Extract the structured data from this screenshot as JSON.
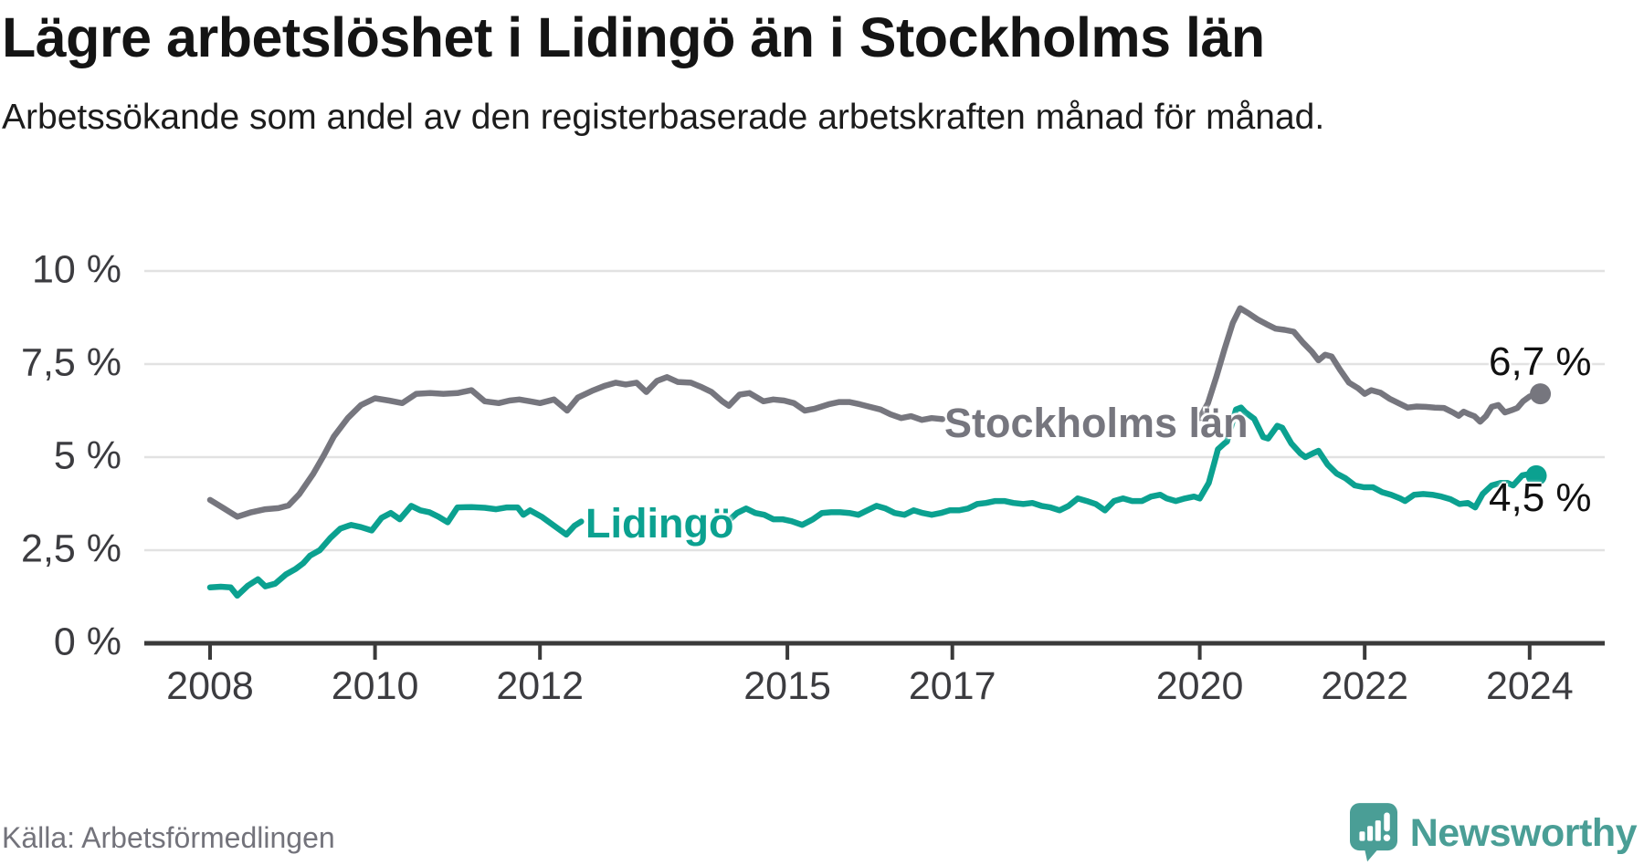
{
  "header": {
    "title": "Lägre arbetslöshet i Lidingö än i Stockholms län",
    "subtitle": "Arbetssökande som andel av den registerbaserade arbetskraften månad för månad."
  },
  "footer": {
    "source": "Källa: Arbetsförmedlingen",
    "brand": "Newsworthy"
  },
  "chart_data": {
    "type": "line",
    "title": "Lägre arbetslöshet i Lidingö än i Stockholms län",
    "subtitle": "Arbetssökande som andel av den registerbaserade arbetskraften månad för månad.",
    "xlabel": "",
    "ylabel": "",
    "grid": true,
    "legend": "inline-labels",
    "x_axis": {
      "ticks": [
        2008,
        2010,
        2012,
        2015,
        2017,
        2020,
        2022,
        2024
      ],
      "range": [
        2008,
        2024.3
      ],
      "unit": "year"
    },
    "y_axis": {
      "range": [
        0,
        10
      ],
      "unit": "%",
      "ticks": [
        {
          "value": 0,
          "label": "0 %"
        },
        {
          "value": 2.5,
          "label": "2,5 %"
        },
        {
          "value": 5,
          "label": "5 %"
        },
        {
          "value": 7.5,
          "label": "7,5 %"
        },
        {
          "value": 10,
          "label": "10 %"
        }
      ]
    },
    "series": [
      {
        "name": "Stockholms län",
        "color": "#76767e",
        "end_label": "6,7 %",
        "end_value": 6.7,
        "label_gap": [
          2016.9,
          2019.96
        ],
        "points": [
          [
            2008.0,
            3.85
          ],
          [
            2008.17,
            3.62
          ],
          [
            2008.33,
            3.4
          ],
          [
            2008.5,
            3.52
          ],
          [
            2008.67,
            3.6
          ],
          [
            2008.83,
            3.63
          ],
          [
            2008.95,
            3.7
          ],
          [
            2009.08,
            4.0
          ],
          [
            2009.25,
            4.55
          ],
          [
            2009.38,
            5.05
          ],
          [
            2009.5,
            5.55
          ],
          [
            2009.67,
            6.05
          ],
          [
            2009.83,
            6.4
          ],
          [
            2010.0,
            6.58
          ],
          [
            2010.17,
            6.52
          ],
          [
            2010.33,
            6.45
          ],
          [
            2010.5,
            6.7
          ],
          [
            2010.67,
            6.72
          ],
          [
            2010.83,
            6.7
          ],
          [
            2011.0,
            6.72
          ],
          [
            2011.17,
            6.8
          ],
          [
            2011.33,
            6.5
          ],
          [
            2011.5,
            6.45
          ],
          [
            2011.63,
            6.52
          ],
          [
            2011.75,
            6.55
          ],
          [
            2011.88,
            6.5
          ],
          [
            2012.0,
            6.45
          ],
          [
            2012.17,
            6.55
          ],
          [
            2012.33,
            6.25
          ],
          [
            2012.46,
            6.6
          ],
          [
            2012.63,
            6.78
          ],
          [
            2012.79,
            6.92
          ],
          [
            2012.92,
            7.0
          ],
          [
            2013.04,
            6.95
          ],
          [
            2013.17,
            7.0
          ],
          [
            2013.29,
            6.75
          ],
          [
            2013.42,
            7.05
          ],
          [
            2013.54,
            7.15
          ],
          [
            2013.67,
            7.02
          ],
          [
            2013.83,
            7.0
          ],
          [
            2013.96,
            6.88
          ],
          [
            2014.08,
            6.75
          ],
          [
            2014.21,
            6.5
          ],
          [
            2014.29,
            6.38
          ],
          [
            2014.42,
            6.68
          ],
          [
            2014.54,
            6.72
          ],
          [
            2014.71,
            6.5
          ],
          [
            2014.83,
            6.55
          ],
          [
            2014.96,
            6.52
          ],
          [
            2015.08,
            6.45
          ],
          [
            2015.21,
            6.25
          ],
          [
            2015.33,
            6.3
          ],
          [
            2015.5,
            6.42
          ],
          [
            2015.63,
            6.48
          ],
          [
            2015.75,
            6.48
          ],
          [
            2015.88,
            6.42
          ],
          [
            2016.0,
            6.35
          ],
          [
            2016.13,
            6.28
          ],
          [
            2016.25,
            6.15
          ],
          [
            2016.38,
            6.05
          ],
          [
            2016.5,
            6.1
          ],
          [
            2016.63,
            6.0
          ],
          [
            2016.75,
            6.05
          ],
          [
            2016.88,
            6.02
          ],
          [
            2017.0,
            6.0
          ],
          [
            2017.25,
            6.02
          ],
          [
            2017.5,
            5.95
          ],
          [
            2017.75,
            5.98
          ],
          [
            2018.0,
            5.95
          ],
          [
            2018.25,
            5.9
          ],
          [
            2018.5,
            5.93
          ],
          [
            2018.75,
            5.9
          ],
          [
            2019.0,
            5.88
          ],
          [
            2019.25,
            5.85
          ],
          [
            2019.5,
            5.88
          ],
          [
            2019.75,
            5.9
          ],
          [
            2020.0,
            6.05
          ],
          [
            2020.1,
            6.45
          ],
          [
            2020.2,
            7.15
          ],
          [
            2020.3,
            7.9
          ],
          [
            2020.4,
            8.6
          ],
          [
            2020.49,
            9.0
          ],
          [
            2020.6,
            8.85
          ],
          [
            2020.7,
            8.7
          ],
          [
            2020.81,
            8.57
          ],
          [
            2020.92,
            8.45
          ],
          [
            2021.03,
            8.42
          ],
          [
            2021.14,
            8.37
          ],
          [
            2021.25,
            8.08
          ],
          [
            2021.36,
            7.83
          ],
          [
            2021.44,
            7.6
          ],
          [
            2021.52,
            7.75
          ],
          [
            2021.6,
            7.7
          ],
          [
            2021.7,
            7.35
          ],
          [
            2021.81,
            7.0
          ],
          [
            2021.92,
            6.85
          ],
          [
            2022.0,
            6.7
          ],
          [
            2022.08,
            6.8
          ],
          [
            2022.19,
            6.73
          ],
          [
            2022.3,
            6.57
          ],
          [
            2022.41,
            6.45
          ],
          [
            2022.52,
            6.33
          ],
          [
            2022.63,
            6.36
          ],
          [
            2022.74,
            6.35
          ],
          [
            2022.85,
            6.33
          ],
          [
            2022.96,
            6.32
          ],
          [
            2023.07,
            6.2
          ],
          [
            2023.14,
            6.11
          ],
          [
            2023.2,
            6.22
          ],
          [
            2023.26,
            6.16
          ],
          [
            2023.33,
            6.1
          ],
          [
            2023.4,
            5.95
          ],
          [
            2023.47,
            6.1
          ],
          [
            2023.54,
            6.35
          ],
          [
            2023.62,
            6.4
          ],
          [
            2023.7,
            6.2
          ],
          [
            2023.78,
            6.26
          ],
          [
            2023.85,
            6.32
          ],
          [
            2023.92,
            6.5
          ],
          [
            2024.0,
            6.63
          ],
          [
            2024.08,
            6.68
          ],
          [
            2024.13,
            6.7
          ]
        ]
      },
      {
        "name": "Lidingö",
        "color": "#0ba190",
        "end_label": "4,5 %",
        "end_value": 4.5,
        "label_gap": [
          2012.55,
          2014.25
        ],
        "points": [
          [
            2008.0,
            1.5
          ],
          [
            2008.13,
            1.52
          ],
          [
            2008.25,
            1.5
          ],
          [
            2008.33,
            1.28
          ],
          [
            2008.46,
            1.55
          ],
          [
            2008.58,
            1.72
          ],
          [
            2008.67,
            1.53
          ],
          [
            2008.79,
            1.6
          ],
          [
            2008.92,
            1.85
          ],
          [
            2009.04,
            2.0
          ],
          [
            2009.13,
            2.15
          ],
          [
            2009.21,
            2.35
          ],
          [
            2009.33,
            2.5
          ],
          [
            2009.46,
            2.83
          ],
          [
            2009.58,
            3.08
          ],
          [
            2009.71,
            3.18
          ],
          [
            2009.83,
            3.12
          ],
          [
            2009.96,
            3.03
          ],
          [
            2010.08,
            3.37
          ],
          [
            2010.19,
            3.5
          ],
          [
            2010.3,
            3.33
          ],
          [
            2010.44,
            3.69
          ],
          [
            2010.55,
            3.57
          ],
          [
            2010.66,
            3.52
          ],
          [
            2010.77,
            3.4
          ],
          [
            2010.88,
            3.25
          ],
          [
            2011.0,
            3.65
          ],
          [
            2011.17,
            3.66
          ],
          [
            2011.33,
            3.64
          ],
          [
            2011.47,
            3.6
          ],
          [
            2011.6,
            3.65
          ],
          [
            2011.73,
            3.65
          ],
          [
            2011.8,
            3.45
          ],
          [
            2011.88,
            3.57
          ],
          [
            2012.02,
            3.4
          ],
          [
            2012.17,
            3.16
          ],
          [
            2012.32,
            2.92
          ],
          [
            2012.42,
            3.16
          ],
          [
            2012.5,
            3.27
          ],
          [
            2012.7,
            3.4
          ],
          [
            2012.9,
            3.5
          ],
          [
            2013.1,
            3.55
          ],
          [
            2013.3,
            3.6
          ],
          [
            2013.5,
            3.55
          ],
          [
            2013.7,
            3.5
          ],
          [
            2013.9,
            3.45
          ],
          [
            2014.1,
            3.38
          ],
          [
            2014.28,
            3.28
          ],
          [
            2014.39,
            3.5
          ],
          [
            2014.5,
            3.62
          ],
          [
            2014.61,
            3.5
          ],
          [
            2014.72,
            3.45
          ],
          [
            2014.83,
            3.33
          ],
          [
            2014.94,
            3.33
          ],
          [
            2015.05,
            3.28
          ],
          [
            2015.18,
            3.18
          ],
          [
            2015.31,
            3.33
          ],
          [
            2015.42,
            3.5
          ],
          [
            2015.53,
            3.52
          ],
          [
            2015.64,
            3.52
          ],
          [
            2015.75,
            3.5
          ],
          [
            2015.86,
            3.45
          ],
          [
            2015.97,
            3.57
          ],
          [
            2016.08,
            3.69
          ],
          [
            2016.19,
            3.62
          ],
          [
            2016.3,
            3.5
          ],
          [
            2016.42,
            3.45
          ],
          [
            2016.53,
            3.57
          ],
          [
            2016.64,
            3.5
          ],
          [
            2016.75,
            3.45
          ],
          [
            2016.86,
            3.5
          ],
          [
            2016.97,
            3.57
          ],
          [
            2017.08,
            3.57
          ],
          [
            2017.19,
            3.62
          ],
          [
            2017.3,
            3.74
          ],
          [
            2017.41,
            3.77
          ],
          [
            2017.52,
            3.82
          ],
          [
            2017.63,
            3.82
          ],
          [
            2017.74,
            3.77
          ],
          [
            2017.86,
            3.74
          ],
          [
            2017.97,
            3.77
          ],
          [
            2018.08,
            3.69
          ],
          [
            2018.19,
            3.65
          ],
          [
            2018.3,
            3.57
          ],
          [
            2018.41,
            3.69
          ],
          [
            2018.52,
            3.89
          ],
          [
            2018.63,
            3.82
          ],
          [
            2018.74,
            3.74
          ],
          [
            2018.85,
            3.57
          ],
          [
            2018.96,
            3.82
          ],
          [
            2019.07,
            3.89
          ],
          [
            2019.18,
            3.82
          ],
          [
            2019.3,
            3.82
          ],
          [
            2019.41,
            3.94
          ],
          [
            2019.52,
            3.99
          ],
          [
            2019.6,
            3.89
          ],
          [
            2019.71,
            3.82
          ],
          [
            2019.82,
            3.89
          ],
          [
            2019.93,
            3.94
          ],
          [
            2020.0,
            3.89
          ],
          [
            2020.11,
            4.31
          ],
          [
            2020.17,
            4.8
          ],
          [
            2020.22,
            5.21
          ],
          [
            2020.3,
            5.37
          ],
          [
            2020.33,
            5.42
          ],
          [
            2020.44,
            6.28
          ],
          [
            2020.5,
            6.33
          ],
          [
            2020.55,
            6.21
          ],
          [
            2020.66,
            6.03
          ],
          [
            2020.77,
            5.54
          ],
          [
            2020.83,
            5.5
          ],
          [
            2020.94,
            5.84
          ],
          [
            2021.0,
            5.79
          ],
          [
            2021.11,
            5.37
          ],
          [
            2021.22,
            5.1
          ],
          [
            2021.28,
            5.0
          ],
          [
            2021.39,
            5.12
          ],
          [
            2021.44,
            5.17
          ],
          [
            2021.55,
            4.8
          ],
          [
            2021.66,
            4.56
          ],
          [
            2021.77,
            4.43
          ],
          [
            2021.88,
            4.24
          ],
          [
            2021.99,
            4.19
          ],
          [
            2022.1,
            4.19
          ],
          [
            2022.21,
            4.06
          ],
          [
            2022.32,
            3.99
          ],
          [
            2022.43,
            3.89
          ],
          [
            2022.49,
            3.82
          ],
          [
            2022.6,
            3.99
          ],
          [
            2022.71,
            4.01
          ],
          [
            2022.82,
            3.99
          ],
          [
            2022.93,
            3.94
          ],
          [
            2023.04,
            3.87
          ],
          [
            2023.15,
            3.74
          ],
          [
            2023.25,
            3.77
          ],
          [
            2023.34,
            3.65
          ],
          [
            2023.43,
            4.01
          ],
          [
            2023.54,
            4.24
          ],
          [
            2023.65,
            4.31
          ],
          [
            2023.73,
            4.31
          ],
          [
            2023.8,
            4.24
          ],
          [
            2023.91,
            4.51
          ],
          [
            2024.0,
            4.55
          ],
          [
            2024.08,
            4.5
          ]
        ]
      }
    ],
    "source": "Källa: Arbetsförmedlingen"
  }
}
